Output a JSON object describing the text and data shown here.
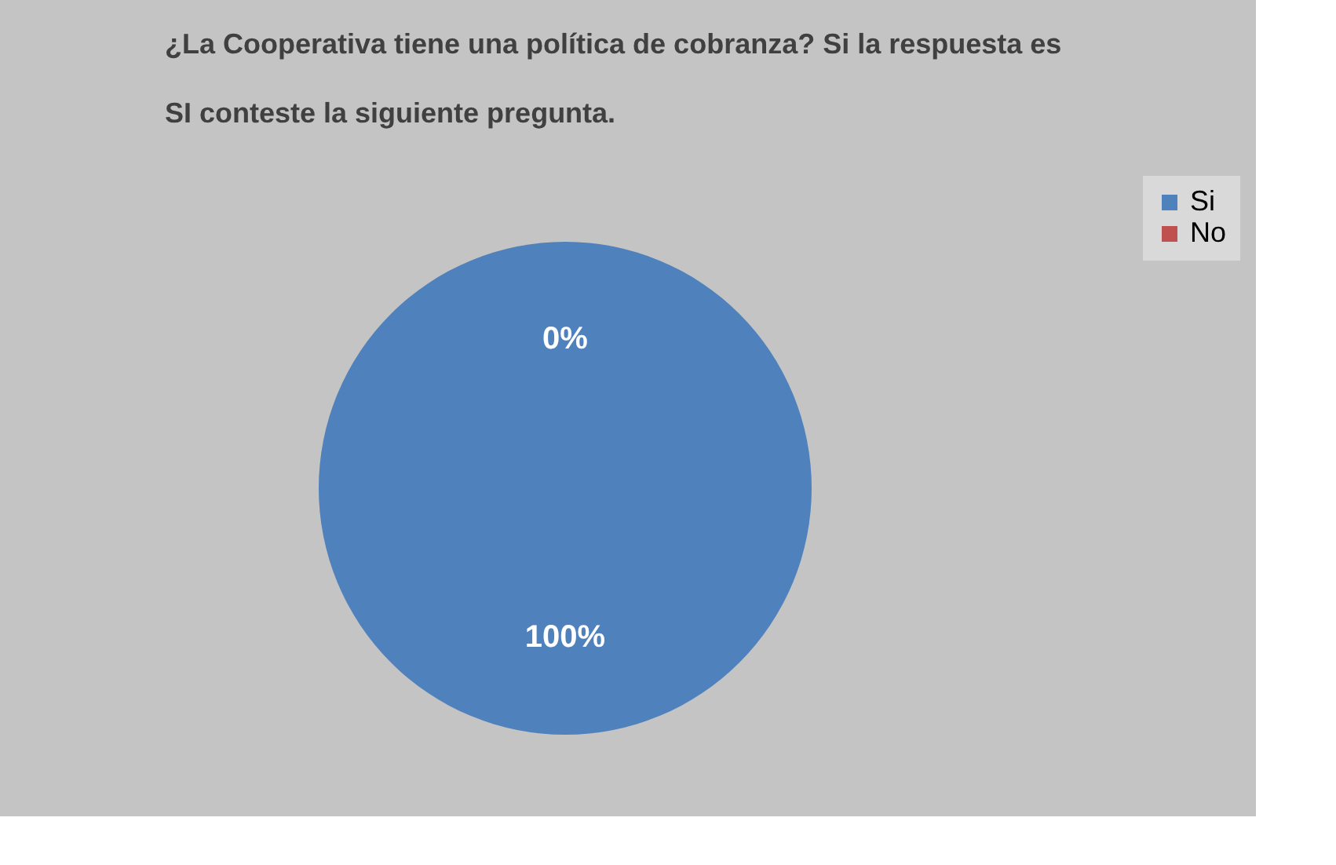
{
  "chart_data": {
    "type": "pie",
    "title": [
      "¿La Cooperativa tiene una política de cobranza? Si la respuesta es",
      "SI conteste la siguiente pregunta."
    ],
    "categories": [
      "Si",
      "No"
    ],
    "values": [
      100,
      0
    ],
    "colors": [
      "#4f81bd",
      "#c0504d"
    ],
    "value_labels": [
      "100%",
      "0%"
    ],
    "legend": "right"
  }
}
